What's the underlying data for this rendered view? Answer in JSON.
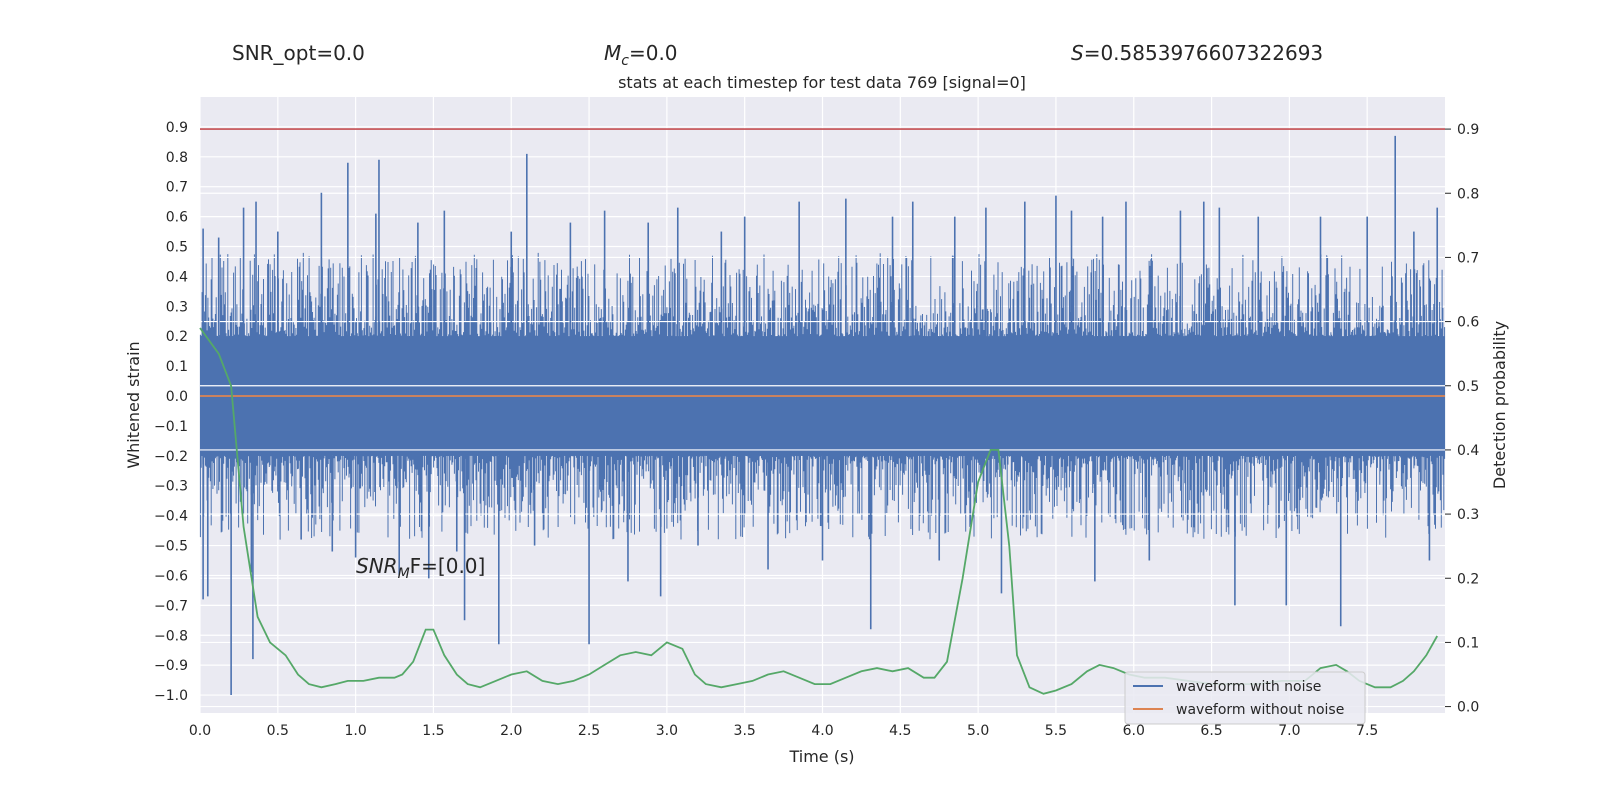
{
  "header": {
    "snr_opt": "SNR_opt=0.0",
    "mc_symbol": "M",
    "mc_sub": "c",
    "mc_value": "=0.0",
    "s_symbol": "S",
    "s_value": "=0.5853976607322693",
    "title": "stats at each timestep for test data 769 [signal=0]"
  },
  "annotation": {
    "snr_mf_main": "SNR",
    "snr_mf_sub": "M",
    "snr_mf_tail": "F=[0.0]"
  },
  "colors": {
    "axes_bg": "#eaeaf2",
    "grid": "#ffffff",
    "noise": "#4c72b0",
    "clean": "#dd8452",
    "prob": "#55a868",
    "threshold": "#c44e52",
    "text": "#262626"
  },
  "chart_data": {
    "type": "line",
    "title": "stats at each timestep for test data 769 [signal=0]",
    "xlabel": "Time (s)",
    "ylabel": "Whitened strain",
    "y2label": "Detection probability",
    "xlim": [
      0.0,
      8.0
    ],
    "ylim": [
      -1.06,
      1.0
    ],
    "y2lim": [
      -0.01,
      0.95
    ],
    "x_ticks": [
      0.0,
      0.5,
      1.0,
      1.5,
      2.0,
      2.5,
      3.0,
      3.5,
      4.0,
      4.5,
      5.0,
      5.5,
      6.0,
      6.5,
      7.0,
      7.5
    ],
    "y_ticks": [
      -1.0,
      -0.9,
      -0.8,
      -0.7,
      -0.6,
      -0.5,
      -0.4,
      -0.3,
      -0.2,
      -0.1,
      0.0,
      0.1,
      0.2,
      0.3,
      0.4,
      0.5,
      0.6,
      0.7,
      0.8,
      0.9
    ],
    "y2_ticks": [
      0.0,
      0.1,
      0.2,
      0.3,
      0.4,
      0.5,
      0.6,
      0.7,
      0.8,
      0.9
    ],
    "grid": true,
    "legend": {
      "placement": "lower-right",
      "entries": [
        "waveform with noise",
        "waveform without noise"
      ]
    },
    "threshold": {
      "axis": "right",
      "value": 0.9
    },
    "series": [
      {
        "name": "waveform with noise",
        "axis": "left",
        "kind": "noise",
        "band": [
          -0.2,
          0.2
        ],
        "spikes": [
          {
            "x": 0.02,
            "y": 0.56
          },
          {
            "x": 0.02,
            "y": -0.68
          },
          {
            "x": 0.05,
            "y": -0.67
          },
          {
            "x": 0.12,
            "y": 0.53
          },
          {
            "x": 0.2,
            "y": -1.0
          },
          {
            "x": 0.28,
            "y": 0.63
          },
          {
            "x": 0.33,
            "y": -0.59
          },
          {
            "x": 0.36,
            "y": 0.65
          },
          {
            "x": 0.34,
            "y": -0.88
          },
          {
            "x": 0.5,
            "y": 0.55
          },
          {
            "x": 0.65,
            "y": -0.48
          },
          {
            "x": 0.78,
            "y": 0.68
          },
          {
            "x": 0.85,
            "y": -0.52
          },
          {
            "x": 0.95,
            "y": 0.78
          },
          {
            "x": 1.0,
            "y": -0.54
          },
          {
            "x": 1.13,
            "y": 0.61
          },
          {
            "x": 1.15,
            "y": 0.79
          },
          {
            "x": 1.28,
            "y": -0.6
          },
          {
            "x": 1.4,
            "y": 0.58
          },
          {
            "x": 1.47,
            "y": -0.61
          },
          {
            "x": 1.57,
            "y": 0.62
          },
          {
            "x": 1.65,
            "y": -0.52
          },
          {
            "x": 1.7,
            "y": -0.75
          },
          {
            "x": 1.92,
            "y": -0.83
          },
          {
            "x": 2.0,
            "y": 0.55
          },
          {
            "x": 2.1,
            "y": 0.81
          },
          {
            "x": 2.15,
            "y": -0.5
          },
          {
            "x": 2.38,
            "y": 0.58
          },
          {
            "x": 2.5,
            "y": -0.83
          },
          {
            "x": 2.6,
            "y": 0.62
          },
          {
            "x": 2.75,
            "y": -0.62
          },
          {
            "x": 2.88,
            "y": 0.58
          },
          {
            "x": 2.96,
            "y": -0.67
          },
          {
            "x": 3.07,
            "y": 0.63
          },
          {
            "x": 3.2,
            "y": -0.5
          },
          {
            "x": 3.35,
            "y": 0.55
          },
          {
            "x": 3.5,
            "y": 0.6
          },
          {
            "x": 3.65,
            "y": -0.58
          },
          {
            "x": 3.85,
            "y": 0.65
          },
          {
            "x": 4.0,
            "y": -0.55
          },
          {
            "x": 4.15,
            "y": 0.66
          },
          {
            "x": 4.31,
            "y": -0.78
          },
          {
            "x": 4.45,
            "y": 0.6
          },
          {
            "x": 4.58,
            "y": 0.65
          },
          {
            "x": 4.75,
            "y": -0.55
          },
          {
            "x": 4.85,
            "y": 0.6
          },
          {
            "x": 5.05,
            "y": 0.63
          },
          {
            "x": 5.15,
            "y": -0.66
          },
          {
            "x": 5.3,
            "y": 0.65
          },
          {
            "x": 5.5,
            "y": 0.67
          },
          {
            "x": 5.6,
            "y": 0.62
          },
          {
            "x": 5.75,
            "y": -0.62
          },
          {
            "x": 5.8,
            "y": 0.6
          },
          {
            "x": 5.95,
            "y": 0.65
          },
          {
            "x": 6.1,
            "y": -0.55
          },
          {
            "x": 6.3,
            "y": 0.62
          },
          {
            "x": 6.45,
            "y": 0.65
          },
          {
            "x": 6.55,
            "y": 0.63
          },
          {
            "x": 6.65,
            "y": -0.7
          },
          {
            "x": 6.8,
            "y": 0.6
          },
          {
            "x": 6.98,
            "y": -0.7
          },
          {
            "x": 7.2,
            "y": 0.6
          },
          {
            "x": 7.33,
            "y": -0.77
          },
          {
            "x": 7.5,
            "y": 0.6
          },
          {
            "x": 7.68,
            "y": 0.87
          },
          {
            "x": 7.8,
            "y": 0.55
          },
          {
            "x": 7.95,
            "y": 0.63
          },
          {
            "x": 7.9,
            "y": -0.55
          }
        ]
      },
      {
        "name": "waveform without noise",
        "axis": "left",
        "x": [
          0.0,
          8.0
        ],
        "y": [
          0.0,
          0.0
        ]
      },
      {
        "axis": "right",
        "x": [
          0.0,
          0.12,
          0.2,
          0.28,
          0.37,
          0.45,
          0.55,
          0.63,
          0.7,
          0.78,
          0.87,
          0.95,
          1.05,
          1.15,
          1.25,
          1.3,
          1.37,
          1.45,
          1.5,
          1.57,
          1.65,
          1.72,
          1.8,
          1.9,
          2.0,
          2.1,
          2.2,
          2.3,
          2.4,
          2.5,
          2.6,
          2.7,
          2.8,
          2.9,
          3.0,
          3.1,
          3.18,
          3.25,
          3.35,
          3.45,
          3.55,
          3.65,
          3.75,
          3.85,
          3.95,
          4.05,
          4.15,
          4.25,
          4.35,
          4.45,
          4.55,
          4.65,
          4.72,
          4.8,
          4.9,
          5.0,
          5.08,
          5.13,
          5.2,
          5.25,
          5.33,
          5.42,
          5.5,
          5.6,
          5.7,
          5.78,
          5.87,
          5.97,
          6.07,
          6.2,
          6.35,
          6.5,
          6.65,
          6.8,
          6.95,
          7.1,
          7.2,
          7.3,
          7.37,
          7.45,
          7.55,
          7.65,
          7.73,
          7.8,
          7.88,
          7.95
        ],
        "y": [
          0.59,
          0.55,
          0.5,
          0.28,
          0.14,
          0.1,
          0.08,
          0.05,
          0.035,
          0.03,
          0.035,
          0.04,
          0.04,
          0.045,
          0.045,
          0.05,
          0.07,
          0.12,
          0.12,
          0.08,
          0.05,
          0.035,
          0.03,
          0.04,
          0.05,
          0.055,
          0.04,
          0.035,
          0.04,
          0.05,
          0.065,
          0.08,
          0.085,
          0.08,
          0.1,
          0.09,
          0.05,
          0.035,
          0.03,
          0.035,
          0.04,
          0.05,
          0.055,
          0.045,
          0.035,
          0.035,
          0.045,
          0.055,
          0.06,
          0.055,
          0.06,
          0.045,
          0.045,
          0.07,
          0.2,
          0.35,
          0.4,
          0.4,
          0.25,
          0.08,
          0.03,
          0.02,
          0.025,
          0.035,
          0.055,
          0.065,
          0.06,
          0.05,
          0.045,
          0.045,
          0.04,
          0.035,
          0.035,
          0.035,
          0.04,
          0.04,
          0.06,
          0.065,
          0.055,
          0.04,
          0.03,
          0.03,
          0.04,
          0.055,
          0.08,
          0.11
        ]
      }
    ]
  }
}
